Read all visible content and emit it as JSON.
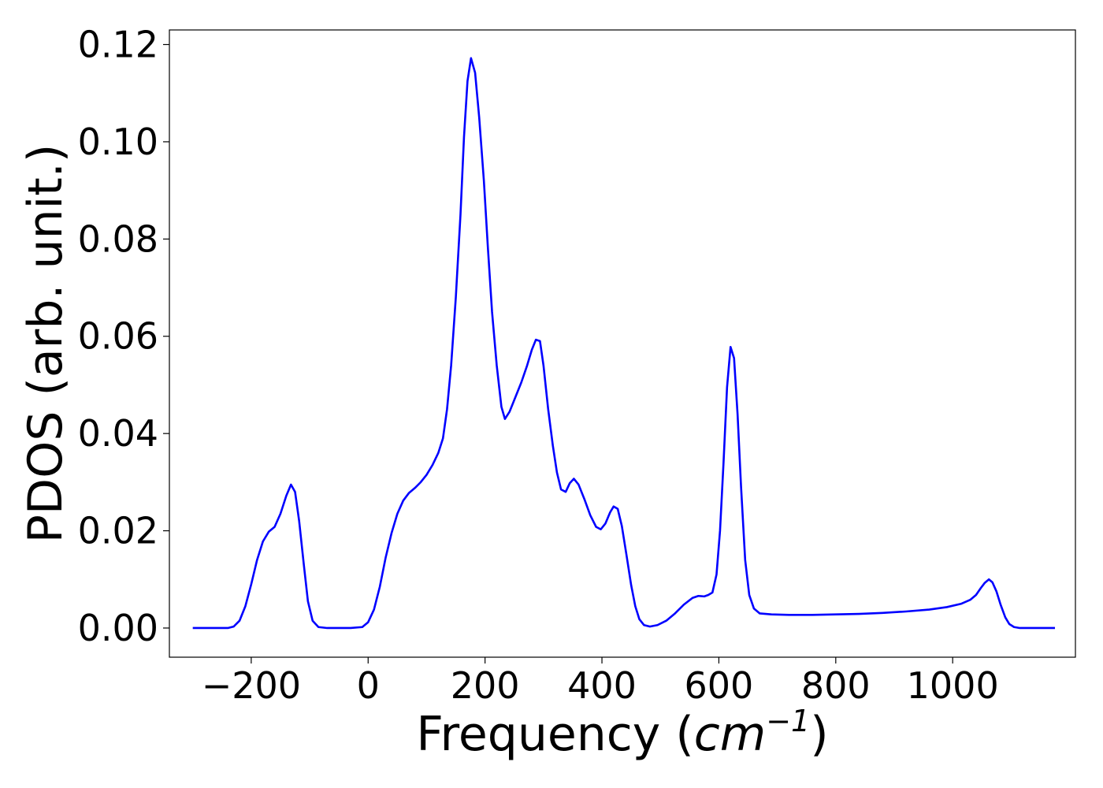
{
  "chart_data": {
    "type": "line",
    "title": "",
    "xlabel": "Frequency",
    "xlabel_unit_base": "cm",
    "xlabel_unit_exp": "−1",
    "ylabel": "PDOS (arb. unit.)",
    "xlim": [
      -340,
      1210
    ],
    "ylim": [
      -0.006,
      0.123
    ],
    "grid": false,
    "legend": "none",
    "x_ticks": [
      -200,
      0,
      200,
      400,
      600,
      800,
      1000
    ],
    "x_tick_labels": [
      "−200",
      "0",
      "200",
      "400",
      "600",
      "800",
      "1000"
    ],
    "y_ticks": [
      0.0,
      0.02,
      0.04,
      0.06,
      0.08,
      0.1,
      0.12
    ],
    "y_tick_labels": [
      "0.00",
      "0.02",
      "0.04",
      "0.06",
      "0.08",
      "0.10",
      "0.12"
    ],
    "colors": {
      "line": "#0000ff",
      "frame": "#000000",
      "background": "#ffffff"
    },
    "series": [
      {
        "points": [
          [
            -300,
            0
          ],
          [
            -260,
            0
          ],
          [
            -240,
            0
          ],
          [
            -230,
            0.0003
          ],
          [
            -220,
            0.0015
          ],
          [
            -210,
            0.0045
          ],
          [
            -200,
            0.009
          ],
          [
            -190,
            0.014
          ],
          [
            -180,
            0.0178
          ],
          [
            -170,
            0.0198
          ],
          [
            -160,
            0.0208
          ],
          [
            -150,
            0.0235
          ],
          [
            -140,
            0.0272
          ],
          [
            -132,
            0.0295
          ],
          [
            -125,
            0.028
          ],
          [
            -118,
            0.022
          ],
          [
            -110,
            0.013
          ],
          [
            -103,
            0.0055
          ],
          [
            -95,
            0.0015
          ],
          [
            -85,
            0.0002
          ],
          [
            -70,
            0
          ],
          [
            -30,
            0
          ],
          [
            -10,
            0.0002
          ],
          [
            0,
            0.0012
          ],
          [
            10,
            0.0038
          ],
          [
            20,
            0.0085
          ],
          [
            30,
            0.0145
          ],
          [
            40,
            0.0195
          ],
          [
            50,
            0.0235
          ],
          [
            60,
            0.0262
          ],
          [
            70,
            0.0278
          ],
          [
            80,
            0.0288
          ],
          [
            90,
            0.03
          ],
          [
            100,
            0.0315
          ],
          [
            110,
            0.0335
          ],
          [
            120,
            0.036
          ],
          [
            128,
            0.039
          ],
          [
            135,
            0.045
          ],
          [
            142,
            0.054
          ],
          [
            150,
            0.068
          ],
          [
            158,
            0.085
          ],
          [
            164,
            0.101
          ],
          [
            170,
            0.1125
          ],
          [
            176,
            0.1172
          ],
          [
            183,
            0.1142
          ],
          [
            190,
            0.105
          ],
          [
            198,
            0.092
          ],
          [
            205,
            0.078
          ],
          [
            212,
            0.065
          ],
          [
            220,
            0.054
          ],
          [
            228,
            0.0455
          ],
          [
            234,
            0.043
          ],
          [
            242,
            0.0445
          ],
          [
            252,
            0.0475
          ],
          [
            262,
            0.0505
          ],
          [
            272,
            0.054
          ],
          [
            280,
            0.0572
          ],
          [
            287,
            0.0593
          ],
          [
            294,
            0.059
          ],
          [
            300,
            0.054
          ],
          [
            308,
            0.045
          ],
          [
            316,
            0.0375
          ],
          [
            323,
            0.032
          ],
          [
            330,
            0.0285
          ],
          [
            338,
            0.028
          ],
          [
            345,
            0.0298
          ],
          [
            352,
            0.0307
          ],
          [
            360,
            0.0295
          ],
          [
            370,
            0.0265
          ],
          [
            380,
            0.0232
          ],
          [
            390,
            0.0208
          ],
          [
            398,
            0.0203
          ],
          [
            406,
            0.0215
          ],
          [
            414,
            0.0238
          ],
          [
            420,
            0.025
          ],
          [
            427,
            0.0245
          ],
          [
            434,
            0.021
          ],
          [
            442,
            0.015
          ],
          [
            450,
            0.0088
          ],
          [
            457,
            0.0045
          ],
          [
            464,
            0.0018
          ],
          [
            472,
            0.0006
          ],
          [
            482,
            0.0003
          ],
          [
            495,
            0.0006
          ],
          [
            510,
            0.0015
          ],
          [
            525,
            0.003
          ],
          [
            540,
            0.0048
          ],
          [
            555,
            0.0062
          ],
          [
            565,
            0.0066
          ],
          [
            575,
            0.0065
          ],
          [
            582,
            0.0068
          ],
          [
            589,
            0.0073
          ],
          [
            596,
            0.011
          ],
          [
            602,
            0.02
          ],
          [
            608,
            0.034
          ],
          [
            614,
            0.0495
          ],
          [
            620,
            0.0578
          ],
          [
            626,
            0.0555
          ],
          [
            632,
            0.044
          ],
          [
            638,
            0.029
          ],
          [
            645,
            0.014
          ],
          [
            652,
            0.0068
          ],
          [
            660,
            0.004
          ],
          [
            670,
            0.003
          ],
          [
            690,
            0.0028
          ],
          [
            720,
            0.0027
          ],
          [
            760,
            0.0027
          ],
          [
            800,
            0.0028
          ],
          [
            840,
            0.0029
          ],
          [
            880,
            0.0031
          ],
          [
            920,
            0.0034
          ],
          [
            960,
            0.0038
          ],
          [
            990,
            0.0043
          ],
          [
            1015,
            0.005
          ],
          [
            1030,
            0.0058
          ],
          [
            1040,
            0.0068
          ],
          [
            1048,
            0.0082
          ],
          [
            1055,
            0.0093
          ],
          [
            1062,
            0.01
          ],
          [
            1068,
            0.0094
          ],
          [
            1075,
            0.0075
          ],
          [
            1082,
            0.0048
          ],
          [
            1090,
            0.0022
          ],
          [
            1097,
            0.0008
          ],
          [
            1105,
            0.0002
          ],
          [
            1115,
            0
          ],
          [
            1150,
            0
          ],
          [
            1175,
            0
          ]
        ]
      }
    ]
  }
}
